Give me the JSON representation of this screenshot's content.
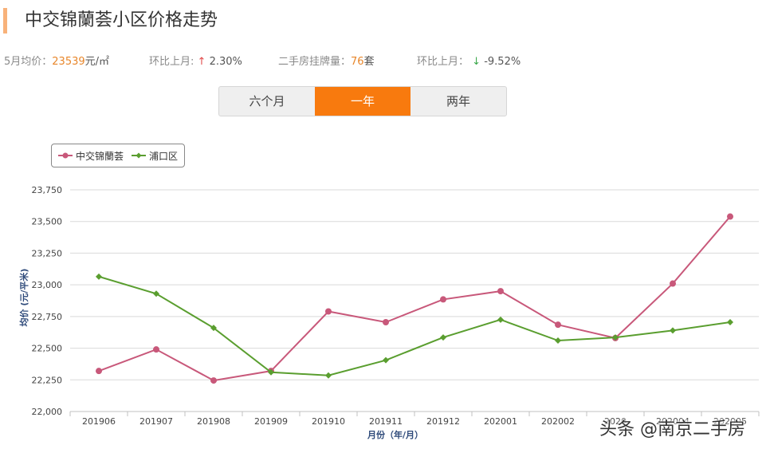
{
  "title": "中交锦蘭荟小区价格走势",
  "stats": {
    "avg_label": "5月均价：",
    "avg_value": "23539",
    "avg_unit": "元/㎡",
    "mom_label": "环比上月:",
    "mom_arrow": "↑",
    "mom_value": "2.30%",
    "listing_label": "二手房挂牌量：",
    "listing_value": "76",
    "listing_unit": "套",
    "mom2_label": "环比上月：",
    "mom2_arrow": "↓",
    "mom2_value": "-9.52%"
  },
  "range_tabs": [
    {
      "label": "六个月",
      "active": false
    },
    {
      "label": "一年",
      "active": true
    },
    {
      "label": "两年",
      "active": false
    }
  ],
  "watermark": "头条 @南京二手房",
  "colors": {
    "series1": "#c8587a",
    "series2": "#5a9e2f",
    "accent": "#f87a0e"
  },
  "chart_data": {
    "type": "line",
    "title": "",
    "x": [
      "201906",
      "201907",
      "201908",
      "201909",
      "201910",
      "201911",
      "201912",
      "202001",
      "202002",
      "202003",
      "202004",
      "202005"
    ],
    "x_display": [
      "201906",
      "201907",
      "201908",
      "201909",
      "201910",
      "201911",
      "201912",
      "202001",
      "202002",
      "2020",
      "202004",
      "202005"
    ],
    "series": [
      {
        "name": "中交锦蘭荟",
        "marker": "circle",
        "values": [
          22320,
          22490,
          22245,
          22320,
          22790,
          22705,
          22885,
          22950,
          22685,
          22580,
          23010,
          23539
        ]
      },
      {
        "name": "浦口区",
        "marker": "diamond",
        "values": [
          23065,
          22930,
          22660,
          22310,
          22285,
          22405,
          22585,
          22725,
          22560,
          22585,
          22640,
          22705
        ]
      }
    ],
    "xlabel": "月份（年/月）",
    "ylabel": "均价 (元/平米)",
    "ylim": [
      22000,
      23750
    ],
    "yticks": [
      "22,000",
      "22,250",
      "22,500",
      "22,750",
      "23,000",
      "23,250",
      "23,500",
      "23,750"
    ],
    "ytick_values": [
      22000,
      22250,
      22500,
      22750,
      23000,
      23250,
      23500,
      23750
    ],
    "grid": true,
    "legend": "top-left"
  }
}
